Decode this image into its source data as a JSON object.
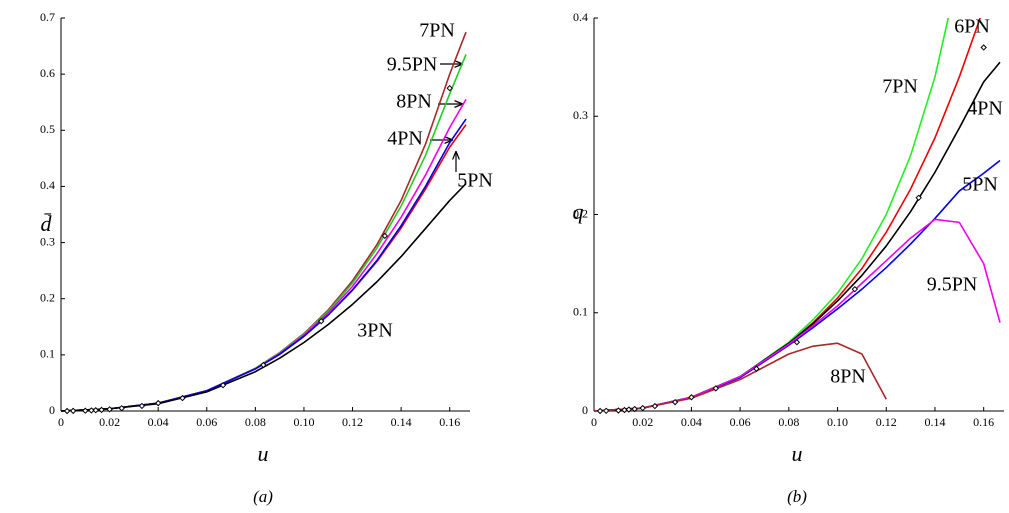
{
  "chart_data": [
    {
      "type": "line",
      "xlabel": "u",
      "ylabel": "d̄",
      "caption": "(a)",
      "xlim": [
        0,
        0.1667
      ],
      "ylim": [
        0,
        0.7
      ],
      "xticks": [
        0,
        0.02,
        0.04,
        0.06,
        0.08,
        {
          "value": 0.1,
          "label": "0.10"
        },
        0.12,
        0.14,
        0.16
      ],
      "yticks": [
        0,
        0.1,
        0.2,
        0.3,
        0.4,
        0.5,
        0.6,
        0.7
      ],
      "x": [
        0,
        0.02,
        0.04,
        0.06,
        0.08,
        0.09,
        0.1,
        0.11,
        0.12,
        0.13,
        0.14,
        0.15,
        0.16,
        0.1667
      ],
      "series": [
        {
          "name": "7PN",
          "color": "#a52a2a",
          "values": [
            0,
            0.004,
            0.014,
            0.036,
            0.076,
            0.104,
            0.138,
            0.18,
            0.232,
            0.296,
            0.375,
            0.475,
            0.6,
            0.675
          ]
        },
        {
          "name": "9.5PN",
          "color": "#22cc22",
          "values": [
            0,
            0.004,
            0.014,
            0.036,
            0.076,
            0.103,
            0.137,
            0.178,
            0.228,
            0.29,
            0.365,
            0.455,
            0.565,
            0.635
          ]
        },
        {
          "name": "8PN",
          "color": "#ee00ee",
          "values": [
            0,
            0.004,
            0.014,
            0.036,
            0.075,
            0.102,
            0.135,
            0.175,
            0.222,
            0.28,
            0.345,
            0.42,
            0.505,
            0.555
          ]
        },
        {
          "name": "4PN",
          "color": "#ee0000",
          "values": [
            0,
            0.004,
            0.014,
            0.036,
            0.075,
            0.101,
            0.133,
            0.171,
            0.215,
            0.266,
            0.326,
            0.395,
            0.47,
            0.51
          ]
        },
        {
          "name": "5PN",
          "color": "#0000ee",
          "values": [
            0,
            0.004,
            0.014,
            0.036,
            0.075,
            0.101,
            0.133,
            0.171,
            0.216,
            0.268,
            0.33,
            0.4,
            0.478,
            0.52
          ]
        },
        {
          "name": "3PN",
          "color": "#000000",
          "values": [
            0,
            0.004,
            0.013,
            0.034,
            0.07,
            0.094,
            0.122,
            0.154,
            0.19,
            0.23,
            0.275,
            0.325,
            0.375,
            0.405
          ]
        }
      ],
      "points": {
        "x": [
          0.0025,
          0.005,
          0.01,
          0.0125,
          0.0143,
          0.0167,
          0.02,
          0.025,
          0.0333,
          0.04,
          0.05,
          0.0667,
          0.0833,
          0.1071,
          0.1333,
          0.16
        ],
        "values": [
          0,
          0.0002,
          0.0005,
          0.001,
          0.0014,
          0.002,
          0.003,
          0.005,
          0.009,
          0.014,
          0.023,
          0.046,
          0.082,
          0.16,
          0.312,
          0.575
        ]
      }
    },
    {
      "type": "line",
      "xlabel": "u",
      "ylabel": "q",
      "caption": "(b)",
      "xlim": [
        0,
        0.1667
      ],
      "ylim": [
        0,
        0.4
      ],
      "xticks": [
        0,
        0.02,
        0.04,
        0.06,
        0.08,
        {
          "value": 0.1,
          "label": "0.10"
        },
        0.12,
        0.14,
        0.16
      ],
      "yticks": [
        0,
        0.1,
        0.2,
        0.3,
        0.4
      ],
      "x": [
        0,
        0.02,
        0.04,
        0.06,
        0.08,
        0.09,
        0.1,
        0.11,
        0.12,
        0.13,
        0.14,
        0.15,
        0.16,
        0.1667
      ],
      "series": [
        {
          "name": "6PN",
          "color": "#ee0000",
          "values": [
            0,
            0.003,
            0.014,
            0.035,
            0.069,
            0.09,
            0.115,
            0.145,
            0.182,
            0.226,
            0.278,
            0.34,
            0.41,
            null
          ]
        },
        {
          "name": "7PN",
          "color": "#22ee22",
          "values": [
            0,
            0.003,
            0.014,
            0.035,
            0.07,
            0.093,
            0.12,
            0.155,
            0.2,
            0.26,
            0.34,
            0.45,
            null,
            null
          ]
        },
        {
          "name": "4PN",
          "color": "#000000",
          "values": [
            0,
            0.003,
            0.014,
            0.035,
            0.069,
            0.089,
            0.112,
            0.138,
            0.168,
            0.203,
            0.243,
            0.288,
            0.335,
            0.355
          ]
        },
        {
          "name": "5PN",
          "color": "#0000ee",
          "values": [
            0,
            0.003,
            0.014,
            0.034,
            0.067,
            0.085,
            0.104,
            0.124,
            0.146,
            0.17,
            0.196,
            0.224,
            0.242,
            0.255
          ]
        },
        {
          "name": "9.5PN",
          "color": "#ee00ee",
          "values": [
            0,
            0.003,
            0.014,
            0.035,
            0.068,
            0.087,
            0.107,
            0.13,
            0.153,
            0.176,
            0.195,
            0.192,
            0.15,
            0.09
          ]
        },
        {
          "name": "8PN",
          "color": "#a52a2a",
          "values": [
            0,
            0.003,
            0.013,
            0.032,
            0.058,
            0.066,
            0.069,
            0.058,
            0.012,
            null,
            null,
            null,
            null,
            null
          ]
        }
      ],
      "points": {
        "x": [
          0.0025,
          0.005,
          0.01,
          0.0125,
          0.0143,
          0.0167,
          0.02,
          0.025,
          0.0333,
          0.04,
          0.05,
          0.0667,
          0.0833,
          0.1071,
          0.1333,
          0.16
        ],
        "values": [
          0,
          0.0002,
          0.0005,
          0.001,
          0.0015,
          0.002,
          0.003,
          0.005,
          0.009,
          0.014,
          0.023,
          0.043,
          0.07,
          0.124,
          0.217,
          0.37
        ]
      }
    }
  ]
}
